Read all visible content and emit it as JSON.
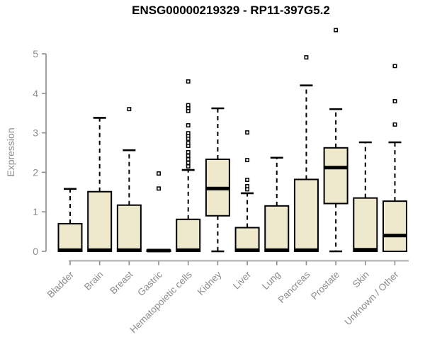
{
  "chart_data": {
    "type": "boxplot",
    "title": "ENSG00000219329 - RP11-397G5.2",
    "ylabel": "Expression",
    "xlabel": "",
    "ylim": [
      0,
      5
    ],
    "yticks": [
      0,
      1,
      2,
      3,
      4,
      5
    ],
    "grid": false,
    "legend_position": "none",
    "categories": [
      "Bladder",
      "Brain",
      "Breast",
      "Gastric",
      "Hematopoietic cells",
      "Kidney",
      "Liver",
      "Lung",
      "Pancreas",
      "Prostate",
      "Skin",
      "Unknown / Other"
    ],
    "series": [
      {
        "name": "Bladder",
        "whisker_low": 0,
        "q1": 0,
        "median": 0.03,
        "q3": 0.7,
        "whisker_high": 1.58,
        "outliers": []
      },
      {
        "name": "Brain",
        "whisker_low": 0,
        "q1": 0,
        "median": 0.03,
        "q3": 1.51,
        "whisker_high": 3.38,
        "outliers": []
      },
      {
        "name": "Breast",
        "whisker_low": 0,
        "q1": 0,
        "median": 0.03,
        "q3": 1.17,
        "whisker_high": 2.56,
        "outliers": [
          3.6
        ]
      },
      {
        "name": "Gastric",
        "whisker_low": 0,
        "q1": 0,
        "median": 0.02,
        "q3": 0.03,
        "whisker_high": 0.03,
        "outliers": [
          1.97,
          1.59
        ]
      },
      {
        "name": "Hematopoietic cells",
        "whisker_low": 0,
        "q1": 0,
        "median": 0.03,
        "q3": 0.81,
        "whisker_high": 2.06,
        "outliers": [
          4.3,
          3.7,
          3.62,
          3.55,
          3.19,
          2.99,
          2.92,
          2.85,
          2.74,
          2.67,
          2.51,
          2.42,
          2.33,
          2.24,
          2.15
        ]
      },
      {
        "name": "Kidney",
        "whisker_low": 0,
        "q1": 0.9,
        "median": 1.59,
        "q3": 2.33,
        "whisker_high": 3.62,
        "outliers": []
      },
      {
        "name": "Liver",
        "whisker_low": 0,
        "q1": 0,
        "median": 0.03,
        "q3": 0.6,
        "whisker_high": 1.47,
        "outliers": [
          3.01,
          2.31,
          1.81,
          1.65,
          1.57
        ]
      },
      {
        "name": "Lung",
        "whisker_low": 0,
        "q1": 0,
        "median": 0.03,
        "q3": 1.15,
        "whisker_high": 2.37,
        "outliers": []
      },
      {
        "name": "Pancreas",
        "whisker_low": 0,
        "q1": 0,
        "median": 0.03,
        "q3": 1.82,
        "whisker_high": 4.2,
        "outliers": [
          4.91
        ]
      },
      {
        "name": "Prostate",
        "whisker_low": 0,
        "q1": 1.21,
        "median": 2.12,
        "q3": 2.62,
        "whisker_high": 3.6,
        "outliers": [
          5.6
        ]
      },
      {
        "name": "Skin",
        "whisker_low": 0,
        "q1": 0,
        "median": 0.04,
        "q3": 1.35,
        "whisker_high": 2.76,
        "outliers": []
      },
      {
        "name": "Unknown / Other",
        "whisker_low": 0,
        "q1": 0,
        "median": 0.4,
        "q3": 1.27,
        "whisker_high": 2.76,
        "outliers": [
          4.69,
          3.8,
          3.21
        ]
      }
    ],
    "style": {
      "box_fill": "#EEE8CD",
      "box_border": "#000000",
      "median_color": "#000000",
      "whisker_style": "dashed",
      "outlier_marker": "open-square",
      "axis_color": "#8B8B8B",
      "tick_label_color": "#8C8C8C",
      "title_color": "#000000",
      "background": "#FFFFFF"
    }
  }
}
